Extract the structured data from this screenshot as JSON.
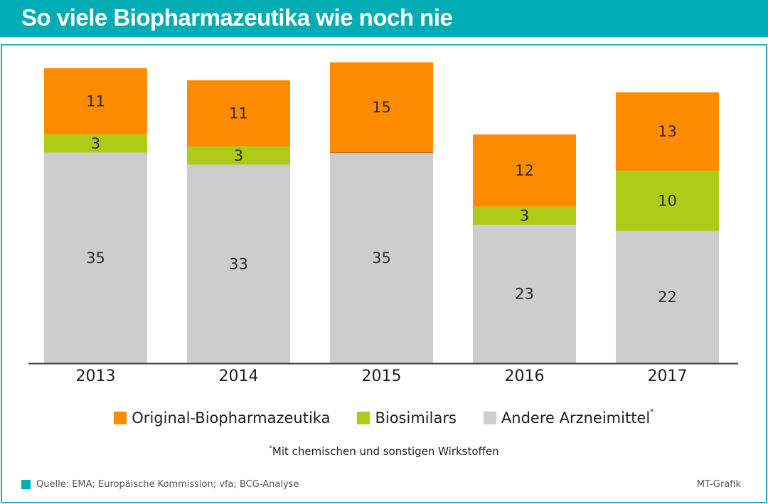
{
  "header": {
    "title": "So viele Biopharmazeutika wie noch nie"
  },
  "colors": {
    "header_bg": "#00adb5",
    "original": "#ff8c00",
    "biosimilars": "#aecb17",
    "andere": "#cdcdcd",
    "axis": "#3a3a3a"
  },
  "chart_data": {
    "type": "bar",
    "stacked": true,
    "title": "So viele Biopharmazeutika wie noch nie",
    "xlabel": "",
    "ylabel": "",
    "categories": [
      "2013",
      "2014",
      "2015",
      "2016",
      "2017"
    ],
    "series": [
      {
        "name": "Andere Arzneimittel",
        "color": "#cdcdcd",
        "values": [
          35,
          33,
          35,
          23,
          22
        ]
      },
      {
        "name": "Biosimilars",
        "color": "#aecb17",
        "values": [
          3,
          3,
          0,
          3,
          10
        ]
      },
      {
        "name": "Original-Biopharmazeutika",
        "color": "#ff8c00",
        "values": [
          11,
          11,
          15,
          12,
          13
        ]
      }
    ],
    "data_labels": {
      "Andere Arzneimittel": [
        "35",
        "33",
        "35",
        "23",
        "22"
      ],
      "Biosimilars": [
        "3",
        "3",
        "",
        "3",
        "10"
      ],
      "Original-Biopharmazeutika": [
        "11",
        "11",
        "15",
        "12",
        "13"
      ]
    },
    "ylim": [
      0,
      49
    ],
    "grid": false,
    "legend_position": "bottom"
  },
  "legend": {
    "items": [
      {
        "label": "Original-Biopharmazeutika",
        "sup": ""
      },
      {
        "label": "Biosimilars",
        "sup": ""
      },
      {
        "label": "Andere Arzneimittel",
        "sup": "*"
      }
    ]
  },
  "footnote": {
    "marker": "*",
    "text": "Mit chemischen und sonstigen Wirkstoffen"
  },
  "source": {
    "text": "Quelle: EMA; Europäische Kommission; vfa; BCG-Analyse"
  },
  "credit": {
    "text": "MT-Grafik"
  }
}
